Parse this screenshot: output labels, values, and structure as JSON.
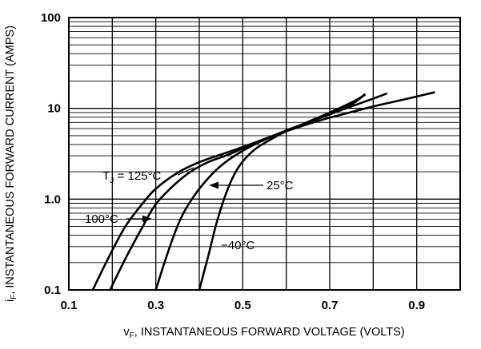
{
  "chart_data": {
    "type": "line",
    "yscale": "log",
    "xlim": [
      0.1,
      1.0
    ],
    "ylim": [
      0.1,
      100
    ],
    "xticks": [
      {
        "value": 0.1,
        "label": "0.1"
      },
      {
        "value": 0.3,
        "label": "0.3"
      },
      {
        "value": 0.5,
        "label": "0.5"
      },
      {
        "value": 0.7,
        "label": "0.7"
      },
      {
        "value": 0.9,
        "label": "0.9"
      }
    ],
    "yticks": [
      {
        "value": 0.1,
        "label": "0.1"
      },
      {
        "value": 1,
        "label": "1.0"
      },
      {
        "value": 10,
        "label": "10"
      },
      {
        "value": 100,
        "label": "100"
      }
    ],
    "xlabel": {
      "prefix": "v",
      "sub": "F",
      "rest": ", INSTANTANEOUS FORWARD VOLTAGE (VOLTS)"
    },
    "ylabel": {
      "prefix": "i",
      "sub": "F",
      "rest": ", INSTANTANEOUS FORWARD CURRENT (AMPS)"
    },
    "series": [
      {
        "name": "125C",
        "x": [
          0.155,
          0.19,
          0.23,
          0.27,
          0.3,
          0.35,
          0.4,
          0.45,
          0.5,
          0.55,
          0.6,
          0.65,
          0.7,
          0.75,
          0.78
        ],
        "y": [
          0.1,
          0.22,
          0.5,
          0.9,
          1.3,
          1.95,
          2.55,
          3.1,
          3.75,
          4.6,
          5.7,
          7.0,
          8.6,
          11.0,
          14.2
        ]
      },
      {
        "name": "100C",
        "x": [
          0.195,
          0.23,
          0.27,
          0.3,
          0.34,
          0.38,
          0.42,
          0.46,
          0.5,
          0.55,
          0.6,
          0.65,
          0.7,
          0.75,
          0.8,
          0.83
        ],
        "y": [
          0.1,
          0.22,
          0.5,
          0.88,
          1.4,
          2.0,
          2.55,
          3.0,
          3.6,
          4.5,
          5.7,
          7.0,
          8.6,
          10.5,
          12.8,
          14.5
        ]
      },
      {
        "name": "25C",
        "x": [
          0.3,
          0.32,
          0.34,
          0.36,
          0.38,
          0.4,
          0.43,
          0.46,
          0.5,
          0.55,
          0.6,
          0.65,
          0.7,
          0.75,
          0.8,
          0.85,
          0.9,
          0.94
        ],
        "y": [
          0.1,
          0.2,
          0.38,
          0.65,
          0.95,
          1.3,
          1.9,
          2.55,
          3.4,
          4.5,
          5.6,
          6.7,
          7.9,
          9.1,
          10.5,
          11.9,
          13.5,
          15.0
        ]
      },
      {
        "name": "-40C",
        "x": [
          0.4,
          0.42,
          0.44,
          0.46,
          0.48,
          0.5,
          0.53,
          0.57,
          0.6,
          0.65,
          0.7,
          0.75,
          0.78
        ],
        "y": [
          0.1,
          0.23,
          0.55,
          1.1,
          1.85,
          2.6,
          3.6,
          4.7,
          5.6,
          7.1,
          9.0,
          11.6,
          14.0
        ]
      }
    ],
    "annotations": [
      {
        "series": "125C",
        "label_main": "T",
        "label_sub": "J",
        "label_rest": " = 125°C"
      },
      {
        "series": "100C",
        "label": "100°C"
      },
      {
        "series": "25C",
        "label": "25°C"
      },
      {
        "series": "-40C",
        "label": "−40°C"
      }
    ]
  }
}
